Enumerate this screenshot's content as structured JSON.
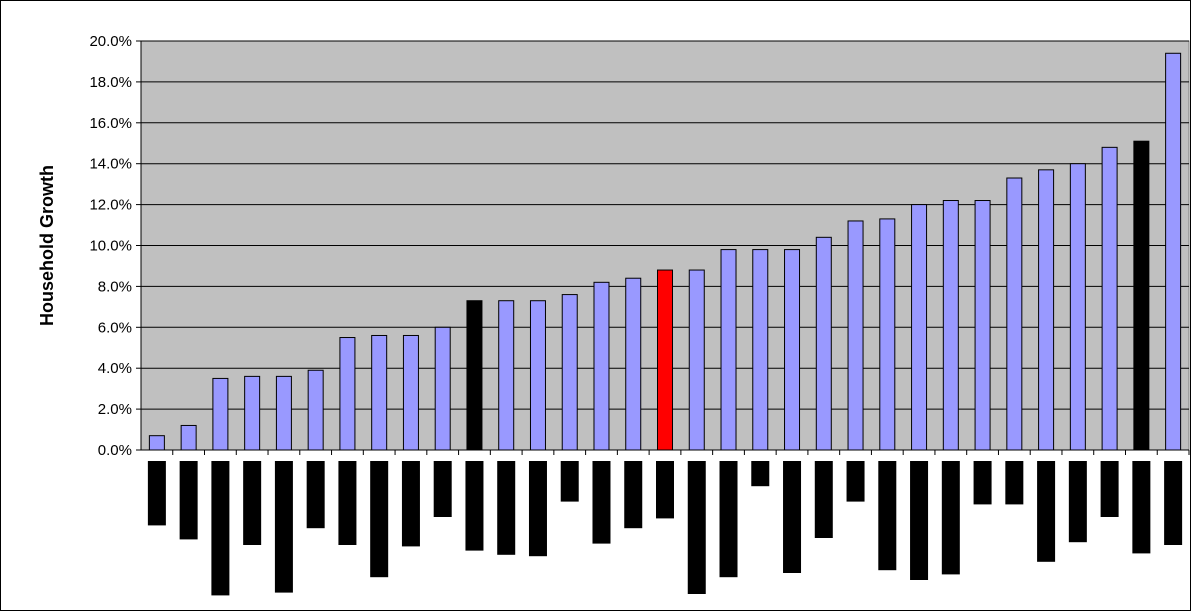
{
  "chart_data": {
    "type": "bar",
    "ylabel": "Household Growth",
    "xlabel": "",
    "title": "",
    "ylim": [
      0,
      0.2
    ],
    "ytick_step": 0.02,
    "ytick_format": "percent_1dp",
    "grid": true,
    "plot_background": "#c0c0c0",
    "default_bar_color": "#9999ff",
    "series": [
      {
        "values": [
          0.007,
          0.012,
          0.035,
          0.036,
          0.036,
          0.039,
          0.055,
          0.056,
          0.056,
          0.06,
          0.073,
          0.073,
          0.073,
          0.076,
          0.082,
          0.084,
          0.088,
          0.088,
          0.098,
          0.098,
          0.098,
          0.104,
          0.112,
          0.113,
          0.12,
          0.122,
          0.122,
          0.133,
          0.137,
          0.14,
          0.148,
          0.151,
          0.194
        ],
        "colors": [
          "#9999ff",
          "#9999ff",
          "#9999ff",
          "#9999ff",
          "#9999ff",
          "#9999ff",
          "#9999ff",
          "#9999ff",
          "#9999ff",
          "#9999ff",
          "#000000",
          "#9999ff",
          "#9999ff",
          "#9999ff",
          "#9999ff",
          "#9999ff",
          "#ff0000",
          "#9999ff",
          "#9999ff",
          "#9999ff",
          "#9999ff",
          "#9999ff",
          "#9999ff",
          "#9999ff",
          "#9999ff",
          "#9999ff",
          "#9999ff",
          "#9999ff",
          "#9999ff",
          "#9999ff",
          "#9999ff",
          "#000000",
          "#9999ff"
        ]
      }
    ],
    "category_label_marks": [
      0.46,
      0.56,
      0.96,
      0.6,
      0.94,
      0.48,
      0.6,
      0.83,
      0.61,
      0.4,
      0.64,
      0.67,
      0.68,
      0.29,
      0.59,
      0.48,
      0.41,
      0.95,
      0.83,
      0.18,
      0.8,
      0.55,
      0.29,
      0.78,
      0.85,
      0.81,
      0.31,
      0.31,
      0.72,
      0.58,
      0.4,
      0.66,
      0.6
    ],
    "category_label_mark_color": "#000000",
    "category_label_note": "Category labels are rendered as redacted black blocks; marks give relative block length."
  }
}
